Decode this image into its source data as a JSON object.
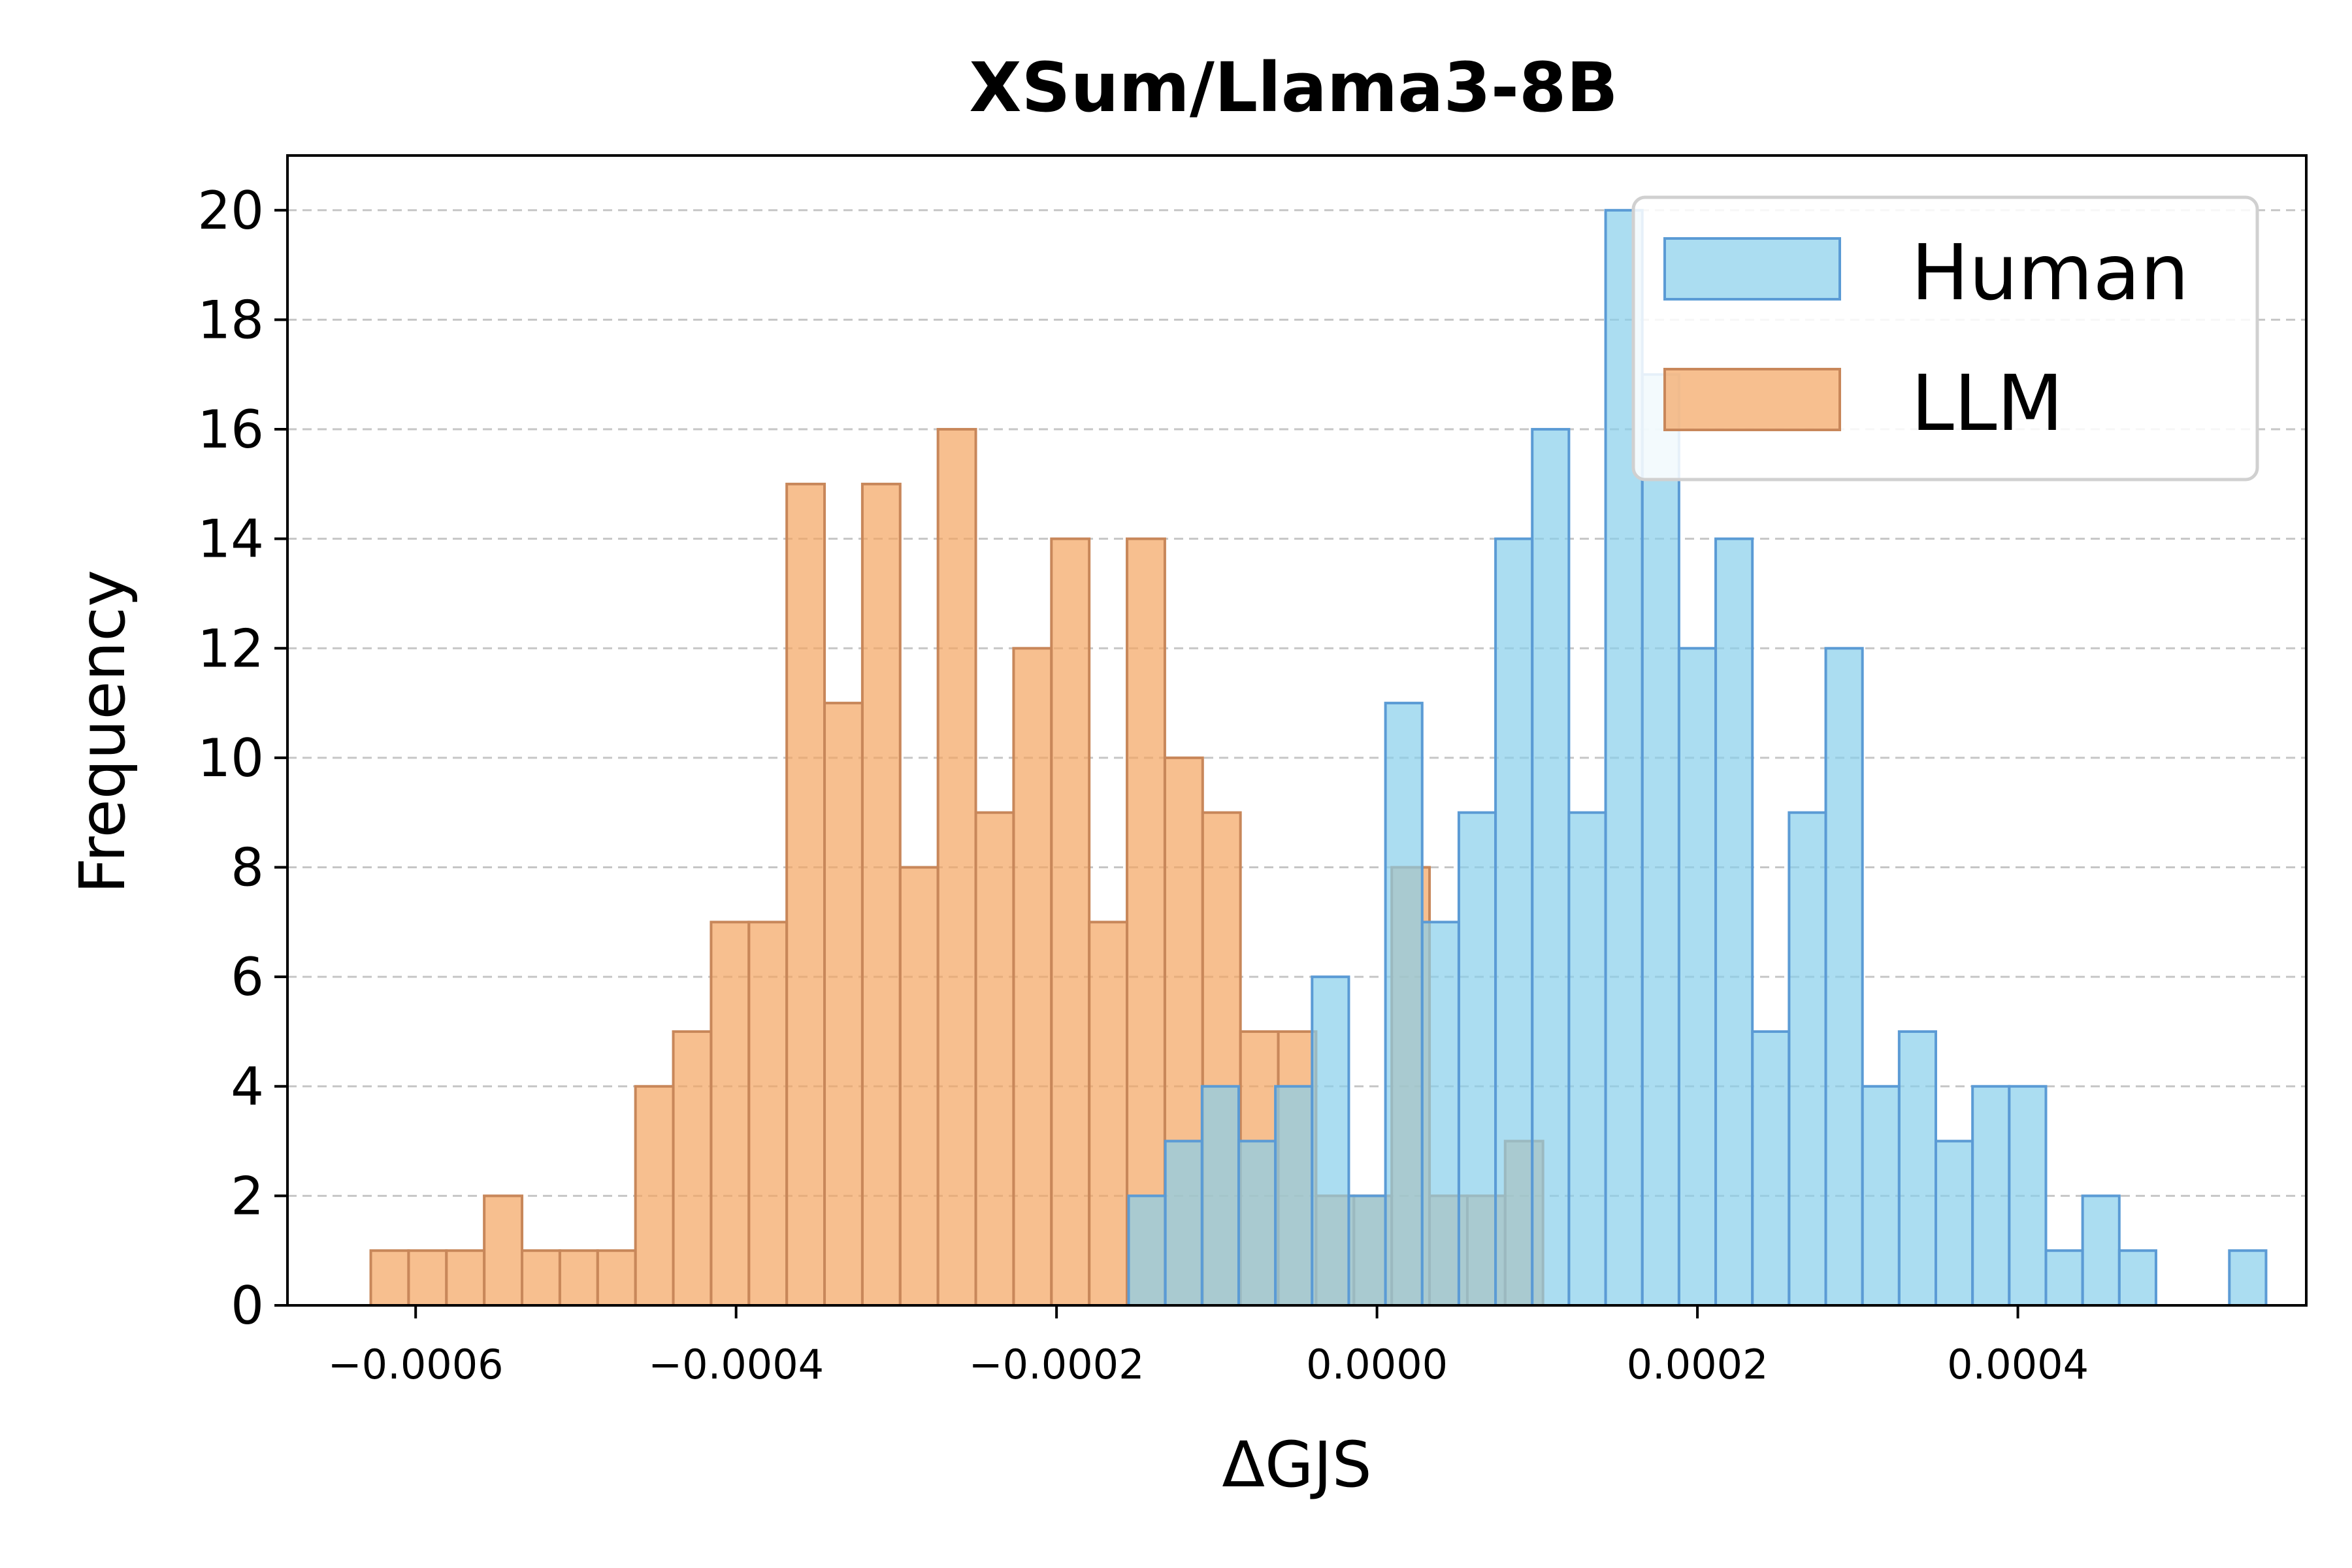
{
  "chart_data": {
    "type": "histogram",
    "title": "XSum/Llama3-8B",
    "xlabel": "ΔGJS",
    "ylabel": "Frequency",
    "xlim": [
      -0.00068,
      0.00058
    ],
    "ylim": [
      0,
      21
    ],
    "x_ticks": [
      -0.0006,
      -0.0004,
      -0.0002,
      0.0,
      0.0002,
      0.0004
    ],
    "x_tick_labels": [
      "−0.0006",
      "−0.0004",
      "−0.0002",
      "0.0000",
      "0.0002",
      "0.0004"
    ],
    "y_ticks": [
      0,
      2,
      4,
      6,
      8,
      10,
      12,
      14,
      16,
      18,
      20
    ],
    "y_tick_labels": [
      "0",
      "2",
      "4",
      "6",
      "8",
      "10",
      "12",
      "14",
      "16",
      "18",
      "20"
    ],
    "grid": "horizontal dashed",
    "legend_position": "top-right",
    "series": [
      {
        "name": "Human",
        "color": "#87CEEB",
        "edge_color": "#5B9BD5",
        "bin_start": -0.000155,
        "bin_width": 2.29e-05,
        "counts": [
          2,
          3,
          4,
          3,
          4,
          6,
          2,
          11,
          7,
          9,
          14,
          16,
          9,
          20,
          17,
          12,
          14,
          5,
          9,
          12,
          4,
          5,
          3,
          4,
          4,
          1,
          2,
          1,
          0,
          0,
          1
        ]
      },
      {
        "name": "LLM",
        "color": "#F4A460",
        "edge_color": "#C8875A",
        "bin_start": -0.000628,
        "bin_width": 2.36e-05,
        "counts": [
          1,
          1,
          1,
          2,
          1,
          1,
          1,
          4,
          5,
          7,
          7,
          15,
          11,
          15,
          8,
          16,
          9,
          12,
          14,
          7,
          14,
          10,
          9,
          5,
          5,
          2,
          2,
          8,
          2,
          2,
          3
        ]
      }
    ]
  }
}
